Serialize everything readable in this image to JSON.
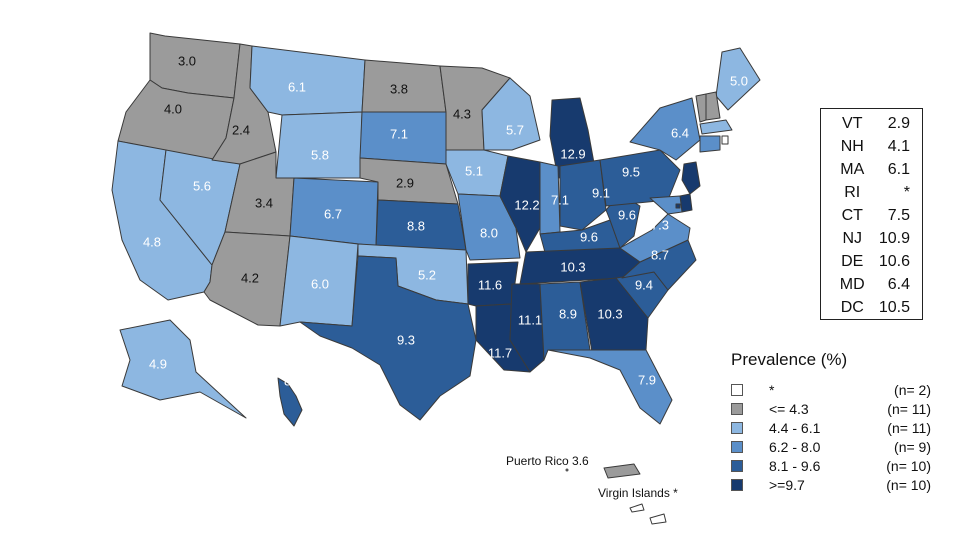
{
  "colors": {
    "nodata": "#ffffff",
    "level1": "#9b9b9b",
    "level2": "#8db7e1",
    "level3": "#5b8fc9",
    "level4": "#2c5d98",
    "level5": "#173a6e",
    "border": "#3a3a3a"
  },
  "states": {
    "WA": "3.0",
    "OR": "4.0",
    "CA": "4.8",
    "ID": "2.4",
    "NV": "5.6",
    "AZ": "4.2",
    "UT": "3.4",
    "MT": "6.1",
    "WY": "5.8",
    "CO": "6.7",
    "NM": "6.0",
    "ND": "3.8",
    "SD": "7.1",
    "NE": "2.9",
    "KS": "8.8",
    "OK": "5.2",
    "TX": "9.3",
    "MN": "4.3",
    "IA": "5.1",
    "MO": "8.0",
    "AR": "11.6",
    "LA": "11.7",
    "WI": "5.7",
    "IL": "12.2",
    "MI": "12.9",
    "IN": "7.1",
    "OH": "9.1",
    "KY": "9.6",
    "TN": "10.3",
    "MS": "11.1",
    "AL": "8.9",
    "GA": "10.3",
    "FL": "7.9",
    "SC": "9.4",
    "NC": "8.7",
    "VA": "7.3",
    "WV": "9.6",
    "PA": "9.5",
    "NY": "6.4",
    "ME": "5.0",
    "AK": "4.9",
    "HI": "8.9"
  },
  "northeast_table": [
    {
      "abbr": "VT",
      "value": "2.9"
    },
    {
      "abbr": "NH",
      "value": "4.1"
    },
    {
      "abbr": "MA",
      "value": "6.1"
    },
    {
      "abbr": "RI",
      "value": "*"
    },
    {
      "abbr": "CT",
      "value": "7.5"
    },
    {
      "abbr": "NJ",
      "value": "10.9"
    },
    {
      "abbr": "DE",
      "value": "10.6"
    },
    {
      "abbr": "MD",
      "value": "6.4"
    },
    {
      "abbr": "DC",
      "value": "10.5"
    }
  ],
  "legend": {
    "title": "Prevalence (%)",
    "items": [
      {
        "range": "*",
        "count": "(n=  2)",
        "color": "#ffffff"
      },
      {
        "range": "<= 4.3",
        "count": "(n= 11)",
        "color": "#9b9b9b"
      },
      {
        "range": "4.4 - 6.1",
        "count": "(n= 11)",
        "color": "#8db7e1"
      },
      {
        "range": "6.2 - 8.0",
        "count": "(n=  9)",
        "color": "#5b8fc9"
      },
      {
        "range": "8.1 - 9.6",
        "count": "(n= 10)",
        "color": "#2c5d98"
      },
      {
        "range": ">=9.7",
        "count": "(n= 10)",
        "color": "#173a6e"
      }
    ]
  },
  "territories": {
    "puerto_rico": "Puerto Rico 3.6",
    "virgin_islands": "Virgin Islands *"
  }
}
